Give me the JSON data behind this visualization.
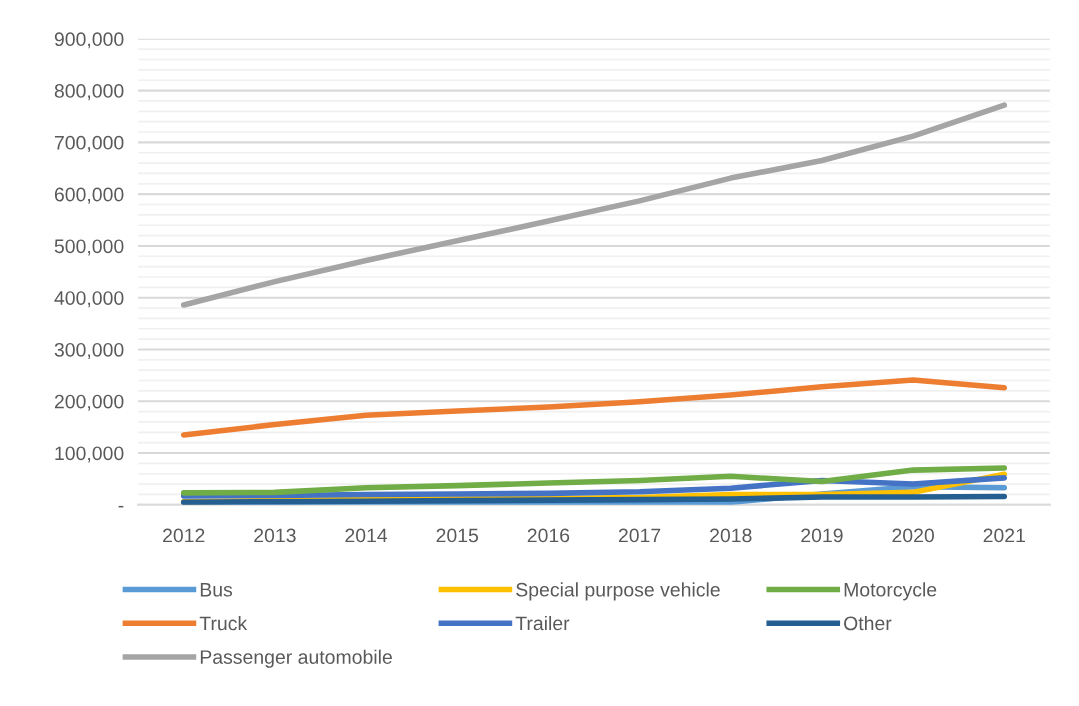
{
  "chart_data": {
    "type": "line",
    "categories": [
      "2012",
      "2013",
      "2014",
      "2015",
      "2016",
      "2017",
      "2018",
      "2019",
      "2020",
      "2021"
    ],
    "series": [
      {
        "name": "Bus",
        "color": "#5b9bd5",
        "values": [
          5000,
          5000,
          5000,
          5000,
          5000,
          5000,
          5000,
          21000,
          35000,
          33000
        ]
      },
      {
        "name": "Truck",
        "color": "#ed7d31",
        "values": [
          135000,
          155000,
          173000,
          181000,
          189000,
          199000,
          212000,
          228000,
          241000,
          226000
        ]
      },
      {
        "name": "Passenger automobile",
        "color": "#a5a5a5",
        "values": [
          386000,
          431000,
          472000,
          510000,
          548000,
          587000,
          631000,
          665000,
          712000,
          772000
        ]
      },
      {
        "name": "Special purpose vehicle",
        "color": "#ffc000",
        "values": [
          6000,
          8000,
          10000,
          11000,
          12000,
          14000,
          20000,
          20000,
          24000,
          59000
        ]
      },
      {
        "name": "Trailer",
        "color": "#4472c4",
        "values": [
          17000,
          18000,
          20000,
          21000,
          22000,
          25000,
          32000,
          47000,
          40000,
          52000
        ]
      },
      {
        "name": "Motorcycle",
        "color": "#70ad47",
        "values": [
          23000,
          24000,
          33000,
          37000,
          42000,
          47000,
          55000,
          45000,
          67000,
          71000
        ]
      },
      {
        "name": "Other",
        "color": "#255e91",
        "values": [
          5000,
          6000,
          7000,
          8000,
          9000,
          10000,
          11000,
          15000,
          15000,
          16000
        ]
      }
    ],
    "ylim": [
      0,
      900000
    ],
    "yticks": [
      {
        "value": 0,
        "label": "-"
      },
      {
        "value": 20000,
        "label": null
      },
      {
        "value": 40000,
        "label": null
      },
      {
        "value": 60000,
        "label": null
      },
      {
        "value": 80000,
        "label": null
      },
      {
        "value": 100000,
        "label": "100,000"
      },
      {
        "value": 120000,
        "label": null
      },
      {
        "value": 140000,
        "label": null
      },
      {
        "value": 160000,
        "label": null
      },
      {
        "value": 180000,
        "label": null
      },
      {
        "value": 200000,
        "label": "200,000"
      },
      {
        "value": 220000,
        "label": null
      },
      {
        "value": 240000,
        "label": null
      },
      {
        "value": 260000,
        "label": null
      },
      {
        "value": 280000,
        "label": null
      },
      {
        "value": 300000,
        "label": "300,000"
      },
      {
        "value": 320000,
        "label": null
      },
      {
        "value": 340000,
        "label": null
      },
      {
        "value": 360000,
        "label": null
      },
      {
        "value": 380000,
        "label": null
      },
      {
        "value": 400000,
        "label": "400,000"
      },
      {
        "value": 420000,
        "label": null
      },
      {
        "value": 440000,
        "label": null
      },
      {
        "value": 460000,
        "label": null
      },
      {
        "value": 480000,
        "label": null
      },
      {
        "value": 500000,
        "label": "500,000"
      },
      {
        "value": 520000,
        "label": null
      },
      {
        "value": 540000,
        "label": null
      },
      {
        "value": 560000,
        "label": null
      },
      {
        "value": 580000,
        "label": null
      },
      {
        "value": 600000,
        "label": "600,000"
      },
      {
        "value": 620000,
        "label": null
      },
      {
        "value": 640000,
        "label": null
      },
      {
        "value": 660000,
        "label": null
      },
      {
        "value": 680000,
        "label": null
      },
      {
        "value": 700000,
        "label": "700,000"
      },
      {
        "value": 720000,
        "label": null
      },
      {
        "value": 740000,
        "label": null
      },
      {
        "value": 760000,
        "label": null
      },
      {
        "value": 780000,
        "label": null
      },
      {
        "value": 800000,
        "label": "800,000"
      },
      {
        "value": 820000,
        "label": null
      },
      {
        "value": 840000,
        "label": null
      },
      {
        "value": 860000,
        "label": null
      },
      {
        "value": 880000,
        "label": null
      },
      {
        "value": 900000,
        "label": "900,000"
      }
    ],
    "grid": true,
    "legend": "bottom",
    "marker": "none",
    "line_style": "solid"
  }
}
